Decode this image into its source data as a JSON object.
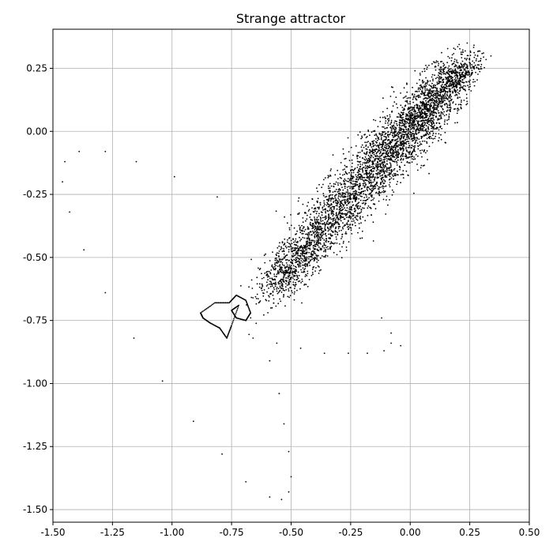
{
  "chart_data": {
    "type": "scatter",
    "title": "Strange attractor",
    "xlabel": "",
    "ylabel": "",
    "xlim": [
      -1.5,
      0.5
    ],
    "ylim": [
      -1.55,
      0.405
    ],
    "grid": true,
    "x_ticks": [
      -1.5,
      -1.25,
      -1.0,
      -0.75,
      -0.5,
      -0.25,
      0.0,
      0.25,
      0.5
    ],
    "x_tick_labels": [
      "-1.50",
      "-1.25",
      "-1.00",
      "-0.75",
      "-0.50",
      "-0.25",
      "0.00",
      "0.25",
      "0.50"
    ],
    "y_ticks": [
      0.25,
      0.0,
      -0.25,
      -0.5,
      -0.75,
      -1.0,
      -1.25,
      -1.5
    ],
    "y_tick_labels": [
      "0.25",
      "0.00",
      "-0.25",
      "-0.50",
      "-0.75",
      "-1.00",
      "-1.25",
      "-1.50"
    ],
    "point_color": "#000000",
    "core_points": [
      [
        -1.46,
        -0.2
      ],
      [
        -1.45,
        -0.12
      ],
      [
        -1.43,
        -0.32
      ],
      [
        -1.39,
        -0.08
      ],
      [
        -1.37,
        -0.47
      ],
      [
        -1.28,
        -0.08
      ],
      [
        -1.28,
        -0.64
      ],
      [
        -1.16,
        -0.82
      ],
      [
        -1.15,
        -0.12
      ],
      [
        -1.04,
        -0.99
      ],
      [
        -0.99,
        -0.18
      ],
      [
        -0.91,
        -1.15
      ],
      [
        -0.81,
        -0.26
      ],
      [
        -0.79,
        -1.28
      ],
      [
        -0.69,
        -1.39
      ],
      [
        -0.66,
        -0.82
      ],
      [
        -0.59,
        -0.91
      ],
      [
        -0.59,
        -1.45
      ],
      [
        -0.56,
        -0.84
      ],
      [
        -0.55,
        -1.04
      ],
      [
        -0.54,
        -1.46
      ],
      [
        -0.53,
        -1.16
      ],
      [
        -0.51,
        -1.27
      ],
      [
        -0.51,
        -1.43
      ],
      [
        -0.5,
        -1.37
      ],
      [
        -0.46,
        -0.86
      ],
      [
        -0.36,
        -0.88
      ],
      [
        -0.26,
        -0.88
      ],
      [
        -0.18,
        -0.88
      ],
      [
        -0.12,
        -0.74
      ],
      [
        -0.11,
        -0.87
      ],
      [
        -0.08,
        -0.8
      ],
      [
        -0.08,
        -0.84
      ],
      [
        -0.04,
        -0.85
      ]
    ],
    "cloud": [
      {
        "cx": -0.52,
        "cy": -0.55,
        "sx": 0.06,
        "sy": 0.07,
        "n": 500
      },
      {
        "cx": -0.4,
        "cy": -0.42,
        "sx": 0.07,
        "sy": 0.08,
        "n": 550
      },
      {
        "cx": -0.27,
        "cy": -0.28,
        "sx": 0.08,
        "sy": 0.09,
        "n": 650
      },
      {
        "cx": -0.14,
        "cy": -0.13,
        "sx": 0.08,
        "sy": 0.09,
        "n": 700
      },
      {
        "cx": -0.01,
        "cy": 0.0,
        "sx": 0.08,
        "sy": 0.09,
        "n": 800
      },
      {
        "cx": 0.1,
        "cy": 0.12,
        "sx": 0.07,
        "sy": 0.08,
        "n": 800
      },
      {
        "cx": 0.2,
        "cy": 0.22,
        "sx": 0.05,
        "sy": 0.05,
        "n": 350
      }
    ],
    "loop": [
      [
        -0.88,
        -0.72
      ],
      [
        -0.82,
        -0.68
      ],
      [
        -0.76,
        -0.68
      ],
      [
        -0.73,
        -0.65
      ],
      [
        -0.69,
        -0.67
      ],
      [
        -0.67,
        -0.72
      ],
      [
        -0.69,
        -0.75
      ],
      [
        -0.73,
        -0.74
      ],
      [
        -0.75,
        -0.71
      ],
      [
        -0.72,
        -0.69
      ],
      [
        -0.75,
        -0.77
      ],
      [
        -0.77,
        -0.82
      ],
      [
        -0.8,
        -0.78
      ],
      [
        -0.84,
        -0.76
      ],
      [
        -0.87,
        -0.74
      ]
    ]
  }
}
